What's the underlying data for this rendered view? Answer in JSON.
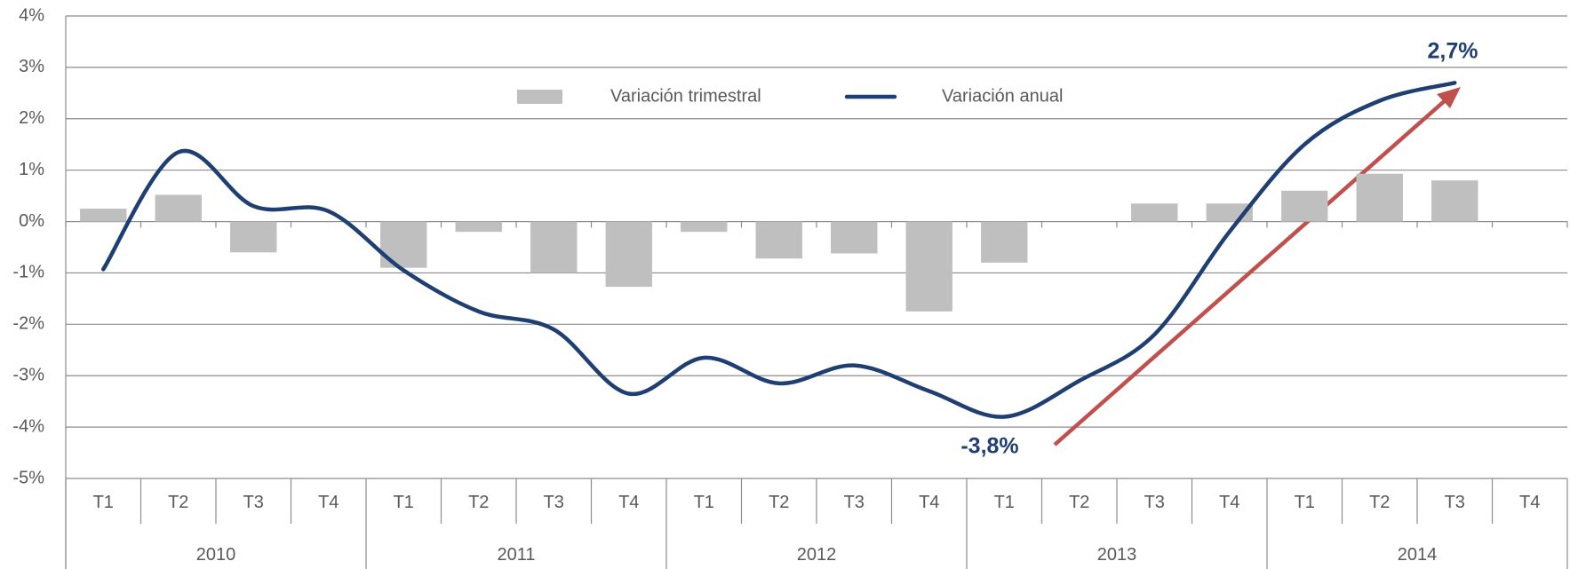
{
  "chart_data": {
    "type": "combo",
    "categories": [
      "T1",
      "T2",
      "T3",
      "T4",
      "T1",
      "T2",
      "T3",
      "T4",
      "T1",
      "T2",
      "T3",
      "T4",
      "T1",
      "T2",
      "T3",
      "T4",
      "T1",
      "T2",
      "T3",
      "T4"
    ],
    "years": [
      "2010",
      "2011",
      "2012",
      "2013",
      "2014"
    ],
    "series": [
      {
        "name": "Variación trimestral",
        "type": "bar",
        "color": "#bfbfbf",
        "values": [
          0.25,
          0.52,
          -0.6,
          null,
          -0.9,
          -0.2,
          -1.0,
          -1.27,
          -0.2,
          -0.72,
          -0.62,
          -1.75,
          -0.8,
          null,
          0.35,
          0.35,
          0.6,
          0.93,
          0.8,
          null
        ]
      },
      {
        "name": "Variación anual",
        "type": "line",
        "color": "#1f3f73",
        "values": [
          -0.93,
          1.35,
          0.3,
          0.2,
          -0.95,
          -1.75,
          -2.1,
          -3.35,
          -2.65,
          -3.15,
          -2.8,
          -3.3,
          -3.8,
          -3.1,
          -2.2,
          -0.2,
          1.5,
          2.35,
          2.7,
          null
        ]
      }
    ],
    "annotations": [
      "2,7%",
      "-3,8%"
    ],
    "ylim": [
      -5,
      4
    ],
    "yticks": [
      {
        "value": -5,
        "label": "-5%"
      },
      {
        "value": -4,
        "label": "-4%"
      },
      {
        "value": -3,
        "label": "-3%"
      },
      {
        "value": -2,
        "label": "-2%"
      },
      {
        "value": -1,
        "label": "-1%"
      },
      {
        "value": 0,
        "label": "0%"
      },
      {
        "value": 1,
        "label": "1%"
      },
      {
        "value": 2,
        "label": "2%"
      },
      {
        "value": 3,
        "label": "3%"
      },
      {
        "value": 4,
        "label": "4%"
      }
    ],
    "grid": true,
    "legend": "top"
  }
}
